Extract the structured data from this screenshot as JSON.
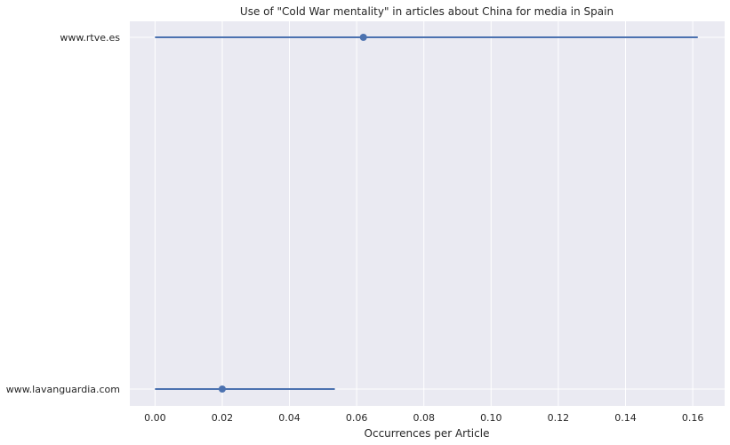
{
  "chart_data": {
    "type": "scatter",
    "title": "Use of \"Cold War mentality\" in articles about China for media in Spain",
    "xlabel": "Occurrences per Article",
    "ylabel": "",
    "xlim": [
      -0.0075,
      0.1695
    ],
    "xticks": [
      "0.00",
      "0.02",
      "0.04",
      "0.06",
      "0.08",
      "0.10",
      "0.12",
      "0.14",
      "0.16"
    ],
    "categories": [
      "www.rtve.es",
      "www.lavanguardia.com"
    ],
    "series": [
      {
        "values": [
          0.062,
          0.02
        ],
        "ci_low": [
          0.0,
          0.0
        ],
        "ci_high": [
          0.1615,
          0.0535
        ]
      }
    ],
    "grid": true,
    "colors": {
      "background": "#EAEAF2",
      "grid": "#FFFFFF",
      "series": "#4C72B0",
      "text": "#262626"
    }
  }
}
